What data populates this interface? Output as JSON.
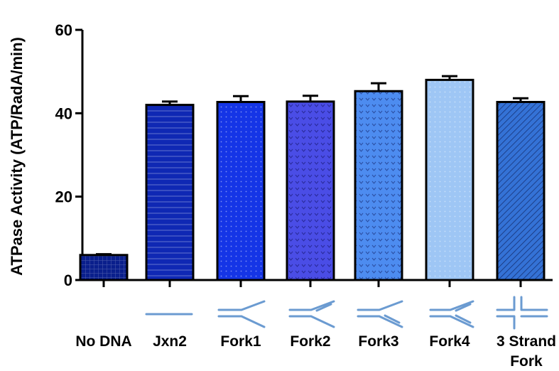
{
  "chart_data": {
    "type": "bar",
    "title": "",
    "xlabel": "",
    "ylabel": "ATPase Activity (ATP/RadA/min)",
    "ylim": [
      0,
      60
    ],
    "yticks": [
      0,
      20,
      40,
      60
    ],
    "categories": [
      "No DNA",
      "Jxn2",
      "Fork1",
      "Fork2",
      "Fork3",
      "Fork4",
      "3 Strand Fork"
    ],
    "category_lines": [
      [
        "No DNA"
      ],
      [
        "Jxn2"
      ],
      [
        "Fork1"
      ],
      [
        "Fork2"
      ],
      [
        "Fork3"
      ],
      [
        "Fork4"
      ],
      [
        "3 Strand",
        "Fork"
      ]
    ],
    "values": [
      6.0,
      42.0,
      42.7,
      42.8,
      45.3,
      48.0,
      42.7
    ],
    "errors": [
      0.2,
      0.8,
      1.4,
      1.4,
      1.9,
      0.9,
      0.9
    ],
    "bar_colors": [
      "#0a1f8c",
      "#0f28b4",
      "#1535e6",
      "#4a4de6",
      "#4d8cf0",
      "#9ec6f5",
      "#3472d6"
    ],
    "bar_patterns": [
      "grid",
      "hlines",
      "dots",
      "vee",
      "vee",
      "dots",
      "diag"
    ],
    "grid": false,
    "legend": "none"
  },
  "dna_schematic_color": "#6b9bd1"
}
